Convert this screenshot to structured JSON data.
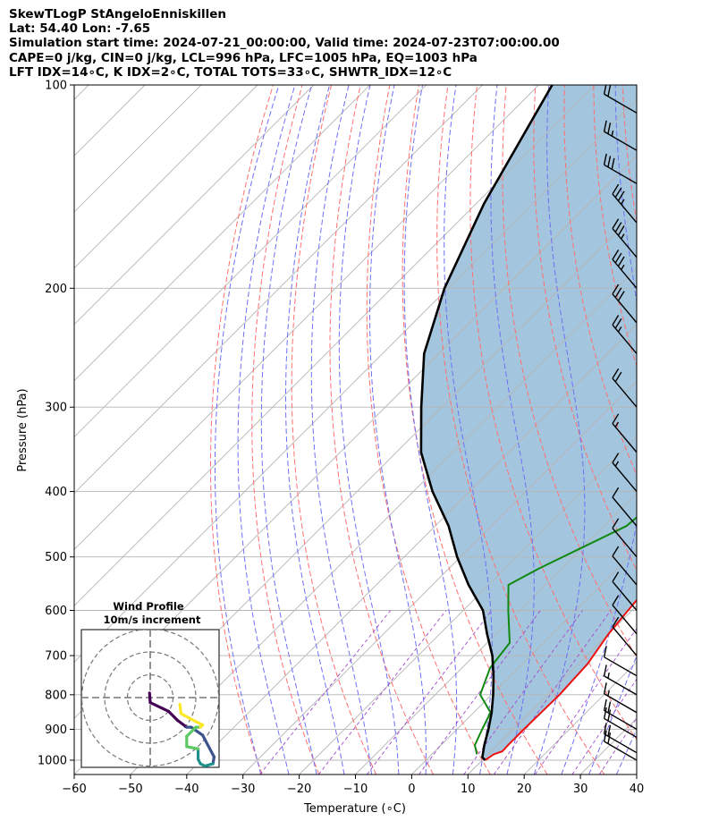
{
  "header": {
    "line1": "SkewTLogP StAngeloEnniskillen",
    "line2": "Lat: 54.40   Lon: -7.65",
    "line3": "Simulation start time: 2024-07-21_00:00:00, Valid time: 2024-07-23T07:00:00.00",
    "line4": "CAPE=0 j/kg, CIN=0 j/kg, LCL=996 hPa, LFC=1005 hPa, EQ=1003 hPa",
    "line5": "LFT IDX=14∘C, K IDX=2∘C, TOTAL TOTS=33∘C, SHWTR_IDX=12∘C"
  },
  "colors": {
    "temperature": "#ee1111",
    "dewpoint": "#118811",
    "parcel": "#000000",
    "shade": "#a3c6de",
    "dry_adiabat": "#ff6f6f",
    "moist_adiabat": "#6f6ff5",
    "mixing_ratio": "#a24bcc",
    "isotherm": "#b5b5b5",
    "isobar": "#b5b5b5"
  },
  "chart_data": {
    "type": "line",
    "xlabel": "Temperature (∘C)",
    "ylabel": "Pressure (hPa)",
    "x_ticks": [
      "−60",
      "−50",
      "−40",
      "−30",
      "−20",
      "−10",
      "0",
      "10",
      "20",
      "30",
      "40"
    ],
    "y_ticks": [
      "100",
      "200",
      "300",
      "400",
      "500",
      "600",
      "700",
      "800",
      "900",
      "1000"
    ],
    "xlim": [
      -60,
      40
    ],
    "ylim": [
      1050,
      100
    ],
    "y_scale": "log",
    "skew": true,
    "grid": true,
    "series": [
      {
        "name": "temperature",
        "points": [
          [
            10.5,
            1000
          ],
          [
            11,
            980
          ],
          [
            12,
            970
          ],
          [
            11.9,
            950
          ],
          [
            11.9,
            900
          ],
          [
            12,
            850
          ],
          [
            12.1,
            800
          ],
          [
            11.6,
            720
          ],
          [
            10,
            650
          ],
          [
            9.3,
            600
          ],
          [
            7.8,
            500
          ],
          [
            6,
            450
          ],
          [
            3.4,
            400
          ],
          [
            -0.4,
            350
          ],
          [
            -2.7,
            300
          ],
          [
            -4.3,
            270
          ],
          [
            -7,
            250
          ],
          [
            -7.6,
            230
          ],
          [
            -8.2,
            200
          ],
          [
            -8.9,
            180
          ],
          [
            -9.6,
            165
          ],
          [
            -8.4,
            150
          ],
          [
            -9.3,
            130
          ],
          [
            -11.3,
            115
          ],
          [
            -12.9,
            105
          ],
          [
            -13.5,
            100
          ]
        ]
      },
      {
        "name": "dewpoint",
        "points": [
          [
            8,
            980
          ],
          [
            6,
            950
          ],
          [
            4.5,
            900
          ],
          [
            3,
            850
          ],
          [
            -2,
            800
          ],
          [
            -5,
            730
          ],
          [
            -6,
            670
          ],
          [
            -12,
            600
          ],
          [
            -16.5,
            550
          ],
          [
            -14,
            520
          ],
          [
            -6,
            450
          ],
          [
            -5.3,
            420
          ],
          [
            -8.6,
            380
          ],
          [
            -13,
            340
          ],
          [
            -15.2,
            320
          ],
          [
            -14.6,
            300
          ],
          [
            -16.5,
            280
          ],
          [
            -19,
            250
          ],
          [
            -20.6,
            220
          ],
          [
            -22,
            200
          ],
          [
            -23.5,
            180
          ],
          [
            -26.1,
            165
          ],
          [
            -30.7,
            155
          ],
          [
            -35.2,
            150
          ],
          [
            -37.8,
            140
          ],
          [
            -44,
            110
          ],
          [
            -48.6,
            100
          ]
        ]
      },
      {
        "name": "parcel",
        "points": [
          [
            10.5,
            1000
          ],
          [
            9.5,
            990
          ],
          [
            7.7,
            950
          ],
          [
            5.6,
            900
          ],
          [
            3.2,
            850
          ],
          [
            0.3,
            800
          ],
          [
            -3,
            750
          ],
          [
            -6.8,
            700
          ],
          [
            -11.6,
            650
          ],
          [
            -16.5,
            600
          ],
          [
            -23.6,
            550
          ],
          [
            -30.6,
            500
          ],
          [
            -37.6,
            450
          ],
          [
            -46.6,
            400
          ],
          [
            -55.6,
            350
          ],
          [
            -63.6,
            300
          ],
          [
            -72.6,
            250
          ],
          [
            -80.6,
            200
          ],
          [
            -88.6,
            150
          ],
          [
            -97.6,
            100
          ]
        ]
      }
    ],
    "wind_barbs": [
      {
        "p": 1000,
        "speed": 20,
        "dir": 300
      },
      {
        "p": 975,
        "speed": 20,
        "dir": 300
      },
      {
        "p": 925,
        "speed": 20,
        "dir": 300
      },
      {
        "p": 900,
        "speed": 20,
        "dir": 300
      },
      {
        "p": 850,
        "speed": 15,
        "dir": 300
      },
      {
        "p": 800,
        "speed": 15,
        "dir": 300
      },
      {
        "p": 750,
        "speed": 10,
        "dir": 300
      },
      {
        "p": 700,
        "speed": 10,
        "dir": 320
      },
      {
        "p": 650,
        "speed": 10,
        "dir": 320
      },
      {
        "p": 600,
        "speed": 10,
        "dir": 320
      },
      {
        "p": 550,
        "speed": 10,
        "dir": 320
      },
      {
        "p": 500,
        "speed": 10,
        "dir": 320
      },
      {
        "p": 450,
        "speed": 10,
        "dir": 320
      },
      {
        "p": 400,
        "speed": 15,
        "dir": 320
      },
      {
        "p": 350,
        "speed": 15,
        "dir": 320
      },
      {
        "p": 300,
        "speed": 20,
        "dir": 320
      },
      {
        "p": 250,
        "speed": 25,
        "dir": 320
      },
      {
        "p": 225,
        "speed": 30,
        "dir": 320
      },
      {
        "p": 200,
        "speed": 35,
        "dir": 320
      },
      {
        "p": 180,
        "speed": 35,
        "dir": 320
      },
      {
        "p": 160,
        "speed": 35,
        "dir": 320
      },
      {
        "p": 140,
        "speed": 30,
        "dir": 300
      },
      {
        "p": 125,
        "speed": 25,
        "dir": 300
      },
      {
        "p": 110,
        "speed": 20,
        "dir": 300
      }
    ],
    "hodograph": {
      "title_line1": "Wind Profile",
      "title_line2": "10m/s increment",
      "colormap": [
        "#440154",
        "#3b528b",
        "#21908d",
        "#5dc963",
        "#fde725"
      ],
      "points": [
        [
          -0.3,
          2.0
        ],
        [
          0.0,
          -2.2
        ],
        [
          8.0,
          -6.0
        ],
        [
          12.0,
          -10.0
        ],
        [
          16.0,
          -13.0
        ],
        [
          18.0,
          -13.0
        ],
        [
          23.0,
          -16.5
        ],
        [
          28.0,
          -26.0
        ],
        [
          27.5,
          -29.0
        ],
        [
          24.0,
          -30.0
        ],
        [
          22.0,
          -29.0
        ],
        [
          21.0,
          -27.0
        ],
        [
          21.0,
          -22.5
        ],
        [
          16.0,
          -21.5
        ],
        [
          16.0,
          -17.0
        ],
        [
          20.0,
          -13.0
        ],
        [
          22.0,
          -13.0
        ],
        [
          23.0,
          -12.0
        ],
        [
          19.0,
          -10.0
        ],
        [
          13.5,
          -7.0
        ],
        [
          13.0,
          -3.0
        ]
      ]
    }
  }
}
